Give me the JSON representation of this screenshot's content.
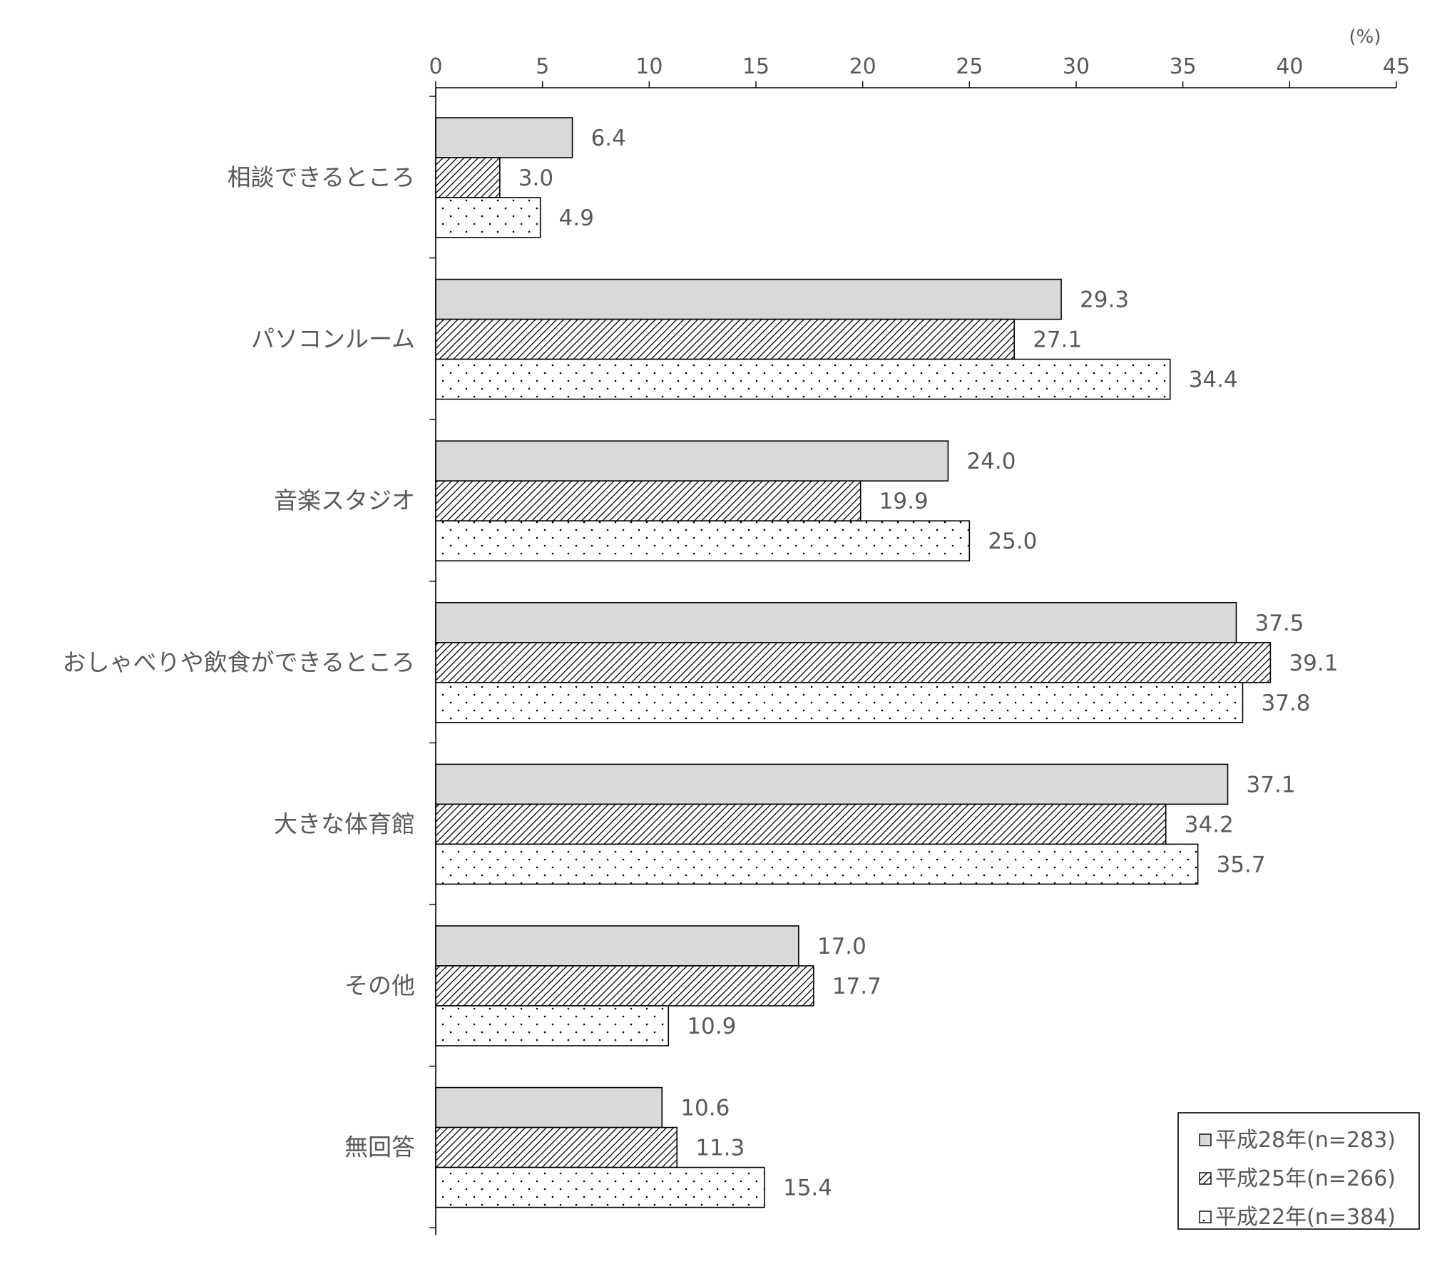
{
  "chart_data": {
    "type": "bar",
    "orientation": "horizontal",
    "unit": "(%)",
    "xlim": [
      0,
      45
    ],
    "ticks": [
      0,
      5,
      10,
      15,
      20,
      25,
      30,
      35,
      40,
      45
    ],
    "categories": [
      "相談できるところ",
      "パソコンルーム",
      "音楽スタジオ",
      "おしゃべりや飲食ができるところ",
      "大きな体育館",
      "その他",
      "無回答"
    ],
    "series": [
      {
        "name": "平成28年(n=283)",
        "pattern": "solid",
        "color": "#d9d9d9",
        "values": [
          6.4,
          29.3,
          24.0,
          37.5,
          37.1,
          17.0,
          10.6
        ],
        "labels": [
          "6.4",
          "29.3",
          "24.0",
          "37.5",
          "37.1",
          "17.0",
          "10.6"
        ]
      },
      {
        "name": "平成25年(n=266)",
        "pattern": "diagonal-hatch",
        "color": "#000000",
        "values": [
          3.0,
          27.1,
          19.9,
          39.1,
          34.2,
          17.7,
          11.3
        ],
        "labels": [
          "3.0",
          "27.1",
          "19.9",
          "39.1",
          "34.2",
          "17.7",
          "11.3"
        ]
      },
      {
        "name": "平成22年(n=384)",
        "pattern": "dots",
        "color": "#000000",
        "values": [
          4.9,
          34.4,
          25.0,
          37.8,
          35.7,
          10.9,
          15.4
        ],
        "labels": [
          "4.9",
          "34.4",
          "25.0",
          "37.8",
          "35.7",
          "10.9",
          "15.4"
        ]
      }
    ],
    "legend_position": "bottom-right",
    "grid": false
  }
}
